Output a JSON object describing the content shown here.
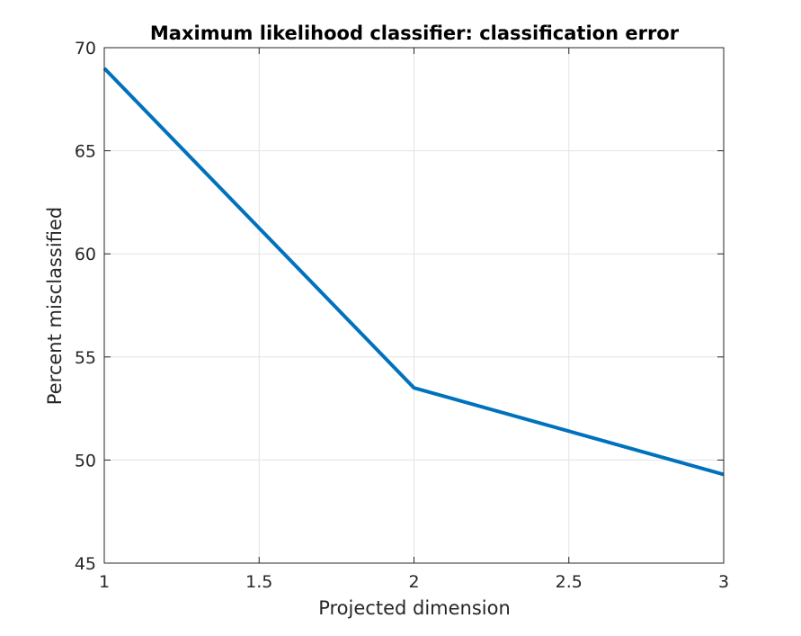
{
  "chart_data": {
    "type": "line",
    "title": "Maximum likelihood classifier: classification error",
    "xlabel": "Projected dimension",
    "ylabel": "Percent misclassified",
    "xlim": [
      1,
      3
    ],
    "ylim": [
      45,
      70
    ],
    "xticks": [
      1,
      1.5,
      2,
      2.5,
      3
    ],
    "xtick_labels": [
      "1",
      "1.5",
      "2",
      "2.5",
      "3"
    ],
    "yticks": [
      45,
      50,
      55,
      60,
      65,
      70
    ],
    "ytick_labels": [
      "45",
      "50",
      "55",
      "60",
      "65",
      "70"
    ],
    "grid": true,
    "series": [
      {
        "x": [
          1,
          2,
          3
        ],
        "values": [
          69,
          53.5,
          49.3
        ],
        "color": "#0072bd"
      }
    ]
  }
}
